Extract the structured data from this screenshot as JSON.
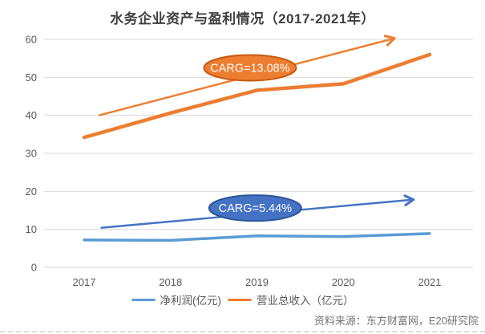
{
  "page": {
    "background": "#FFFFFF"
  },
  "chart_data": {
    "type": "line",
    "title": "水务企业资产与盈利情况（2017-2021年）",
    "xlabel": "",
    "ylabel": "",
    "categories": [
      "2017",
      "2018",
      "2019",
      "2020",
      "2021"
    ],
    "series": [
      {
        "key": "net-profit",
        "name": "净利润(亿元)",
        "color": "#5B9BD5",
        "values": [
          7.2,
          7.1,
          8.3,
          8.1,
          8.9
        ]
      },
      {
        "key": "revenue",
        "name": "营业总收入（亿元）",
        "color": "#ED7D31",
        "values": [
          34.2,
          40.6,
          46.6,
          48.3,
          56.0
        ]
      }
    ],
    "ylim": [
      0,
      60
    ],
    "yticks": [
      0,
      10,
      20,
      30,
      40,
      50,
      60
    ],
    "grid": true,
    "legend_position": "bottom",
    "annotations": [
      {
        "id": "revenue-trend-arrow",
        "type": "trend_arrow",
        "series_key": "revenue",
        "color": "#ED7D31",
        "from": {
          "x": 0.17,
          "y": 40.0
        },
        "to": {
          "x": 3.58,
          "y": 60.2
        }
      },
      {
        "id": "profit-trend-arrow",
        "type": "trend_arrow",
        "series_key": "net-profit",
        "color": "#4472C4",
        "from": {
          "x": 0.19,
          "y": 10.4
        },
        "to": {
          "x": 3.8,
          "y": 17.8
        }
      },
      {
        "id": "revenue-cagr-bubble",
        "type": "ellipse_label",
        "text": "CARG=13.08%",
        "fill": "#ED7D31",
        "border": "#C55A11",
        "text_color": "#FFFFFF",
        "center": {
          "x": 1.92,
          "y": 52.5
        }
      },
      {
        "id": "profit-cagr-bubble",
        "type": "ellipse_label",
        "text": "CARG=5.44%",
        "fill": "#4472C4",
        "border": "#2F5597",
        "text_color": "#FFFFFF",
        "center": {
          "x": 1.98,
          "y": 15.6
        }
      }
    ],
    "source": "资料来源：东方财富网，E20研究院"
  }
}
